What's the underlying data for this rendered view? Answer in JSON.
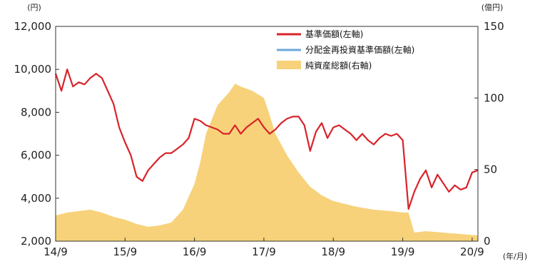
{
  "chart_data": {
    "type": "line",
    "left_unit": "(円)",
    "right_unit": "(億円)",
    "x_unit": "(年/月)",
    "x_ticks": [
      "14/9",
      "15/9",
      "16/9",
      "17/9",
      "18/9",
      "19/9",
      "20/9"
    ],
    "y_left_ticks": [
      "2,000",
      "4,000",
      "6,000",
      "8,000",
      "10,000",
      "12,000"
    ],
    "y_right_ticks": [
      "0",
      "50",
      "100",
      "150"
    ],
    "y_left_range": [
      2000,
      12000
    ],
    "y_right_range": [
      0,
      150
    ],
    "x_range": [
      2014.667,
      2020.75
    ],
    "grid": false,
    "legend_position": "top-right",
    "colors": {
      "nav": "#d8232a",
      "reinvested": "#6fa8dc",
      "assets": "#f7d27a"
    },
    "legend": [
      {
        "label": "基準価額(左軸)",
        "key": "nav"
      },
      {
        "label": "分配金再投資基準価額(左軸)",
        "key": "reinvested"
      },
      {
        "label": "純資産総額(右軸)",
        "key": "assets"
      }
    ],
    "series": [
      {
        "name": "基準価額(左軸)",
        "axis": "left",
        "kind": "line",
        "x": [
          2014.667,
          2014.75,
          2014.833,
          2014.917,
          2015.0,
          2015.083,
          2015.167,
          2015.25,
          2015.333,
          2015.417,
          2015.5,
          2015.583,
          2015.667,
          2015.75,
          2015.833,
          2015.917,
          2016.0,
          2016.083,
          2016.167,
          2016.25,
          2016.333,
          2016.417,
          2016.5,
          2016.583,
          2016.667,
          2016.75,
          2016.833,
          2016.917,
          2017.0,
          2017.083,
          2017.167,
          2017.25,
          2017.333,
          2017.417,
          2017.5,
          2017.583,
          2017.667,
          2017.75,
          2017.833,
          2017.917,
          2018.0,
          2018.083,
          2018.167,
          2018.25,
          2018.333,
          2018.417,
          2018.5,
          2018.583,
          2018.667,
          2018.75,
          2018.833,
          2018.917,
          2019.0,
          2019.083,
          2019.167,
          2019.25,
          2019.333,
          2019.417,
          2019.5,
          2019.583,
          2019.667,
          2019.75,
          2019.833,
          2019.917,
          2020.0,
          2020.083,
          2020.167,
          2020.25,
          2020.333,
          2020.417,
          2020.5,
          2020.583,
          2020.667,
          2020.75
        ],
        "y": [
          9800,
          9000,
          10000,
          9200,
          9400,
          9300,
          9600,
          9800,
          9600,
          9000,
          8400,
          7300,
          6600,
          6000,
          5000,
          4800,
          5300,
          5600,
          5900,
          6100,
          6100,
          6300,
          6500,
          6800,
          7700,
          7600,
          7400,
          7300,
          7200,
          7000,
          7000,
          7400,
          7000,
          7300,
          7500,
          7700,
          7300,
          7000,
          7200,
          7500,
          7700,
          7800,
          7800,
          7400,
          6200,
          7100,
          7500,
          6800,
          7300,
          7400,
          7200,
          7000,
          6700,
          7000,
          6700,
          6500,
          6800,
          7000,
          6900,
          7000,
          6700,
          3500,
          4300,
          4900,
          5300,
          4500,
          5100,
          4700,
          4300,
          4600,
          4400,
          4500,
          5200,
          5300
        ]
      },
      {
        "name": "純資産総額(右軸)",
        "axis": "right",
        "kind": "area",
        "x": [
          2014.667,
          2014.833,
          2015.0,
          2015.167,
          2015.333,
          2015.5,
          2015.667,
          2015.833,
          2016.0,
          2016.167,
          2016.333,
          2016.5,
          2016.667,
          2016.75,
          2016.833,
          2017.0,
          2017.167,
          2017.25,
          2017.333,
          2017.5,
          2017.667,
          2017.75,
          2017.833,
          2018.0,
          2018.167,
          2018.333,
          2018.5,
          2018.667,
          2018.833,
          2019.0,
          2019.25,
          2019.5,
          2019.667,
          2019.75,
          2019.833,
          2020.0,
          2020.25,
          2020.5,
          2020.75
        ],
        "y": [
          18,
          20,
          21,
          22,
          20,
          17,
          15,
          12,
          10,
          11,
          13,
          22,
          40,
          55,
          75,
          95,
          104,
          110,
          108,
          105,
          100,
          88,
          75,
          60,
          48,
          38,
          32,
          28,
          26,
          24,
          22,
          21,
          20,
          20,
          6,
          7,
          6,
          5,
          4
        ]
      },
      {
        "name": "分配金再投資基準価額(左軸)",
        "axis": "left",
        "kind": "line",
        "x": [],
        "y": []
      }
    ]
  }
}
